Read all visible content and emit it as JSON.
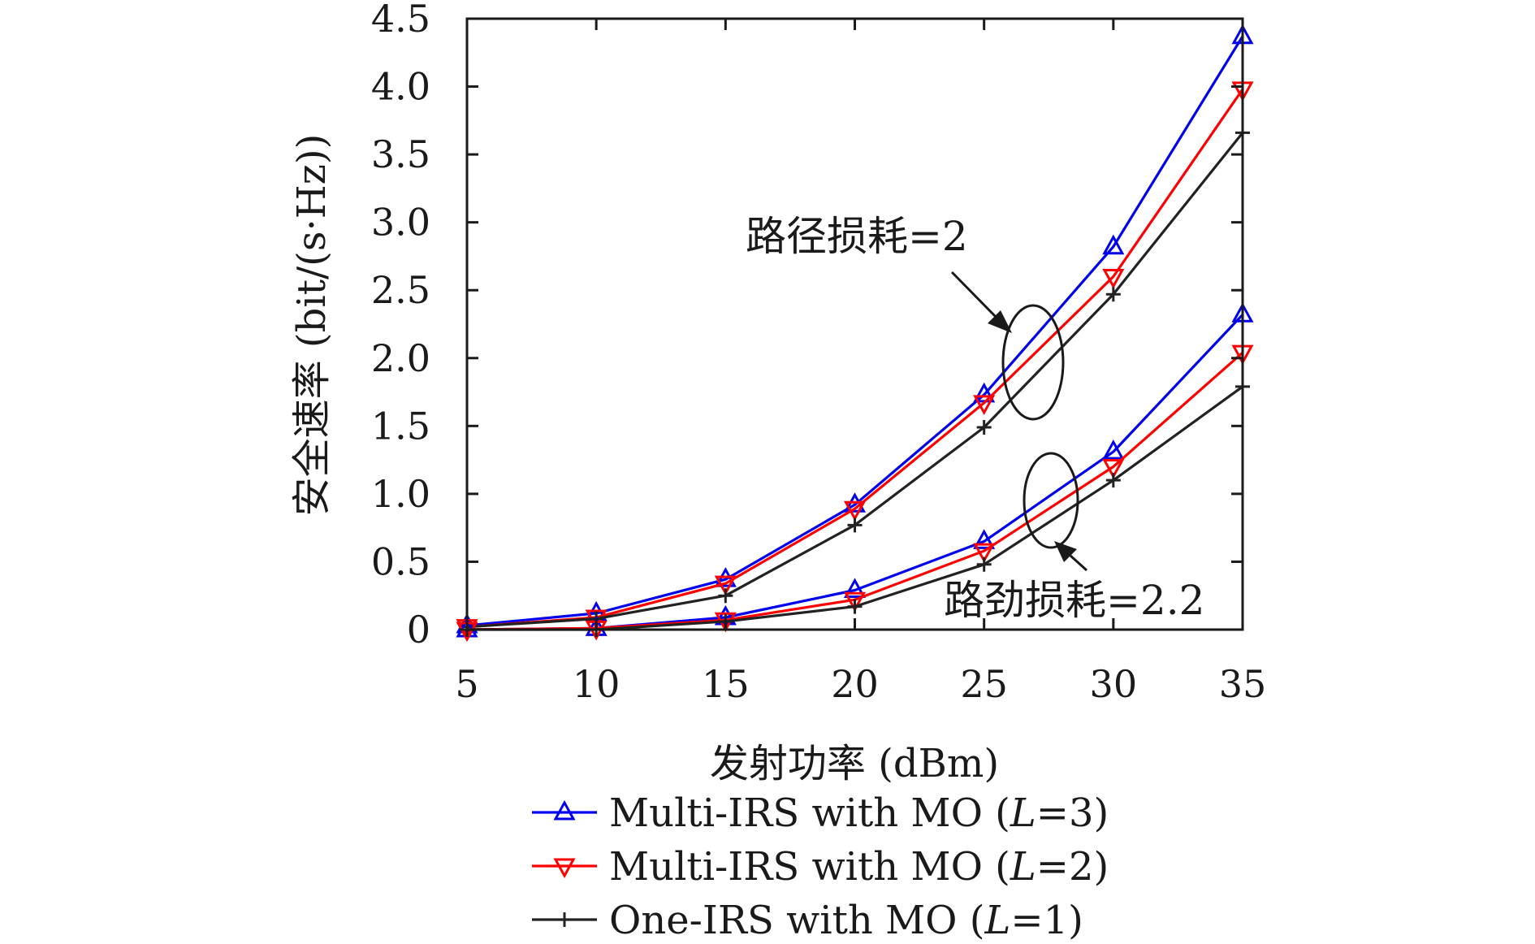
{
  "chart_data": {
    "type": "line",
    "xlabel": "发射功率 (dBm)",
    "ylabel": "安全速率 (bit/(s·Hz))",
    "x": [
      5,
      10,
      15,
      20,
      25,
      30,
      35
    ],
    "xticks": [
      "5",
      "10",
      "15",
      "20",
      "25",
      "30",
      "35"
    ],
    "yticks": [
      "0",
      "0.5",
      "1.0",
      "1.5",
      "2.0",
      "2.5",
      "3.0",
      "3.5",
      "4.0",
      "4.5"
    ],
    "xlim": [
      5,
      35
    ],
    "ylim": [
      0,
      4.5
    ],
    "grid": false,
    "legend_position": "bottom",
    "colors": {
      "blue": "#0000ee",
      "red": "#ff0000",
      "black": "#222222"
    },
    "annotations": [
      {
        "text": "路径损耗=2",
        "group": "pathloss_2"
      },
      {
        "text": "路劲损耗=2.2",
        "group": "pathloss_2_2"
      }
    ],
    "series": [
      {
        "name": "Multi-IRS with MO (L=3)",
        "legend_main": "Multi-IRS with MO (",
        "legend_var": "L",
        "legend_tail": "=3)",
        "group": "pathloss_2",
        "color": "#0000ee",
        "marker": "triangle-up",
        "values": [
          0.03,
          0.12,
          0.37,
          0.92,
          1.73,
          2.82,
          4.37
        ]
      },
      {
        "name": "Multi-IRS with MO (L=2)",
        "legend_main": "Multi-IRS with MO (",
        "legend_var": "L",
        "legend_tail": "=2)",
        "group": "pathloss_2",
        "color": "#ff0000",
        "marker": "triangle-down",
        "values": [
          0.02,
          0.09,
          0.34,
          0.89,
          1.67,
          2.6,
          3.98
        ]
      },
      {
        "name": "One-IRS with MO (L=1)",
        "legend_main": "One-IRS with MO (",
        "legend_var": "L",
        "legend_tail": "=1)",
        "group": "pathloss_2",
        "color": "#222222",
        "marker": "plus",
        "values": [
          0.02,
          0.08,
          0.25,
          0.77,
          1.49,
          2.47,
          3.66
        ]
      },
      {
        "name": "Multi-IRS with MO (L=3)",
        "group": "pathloss_2_2",
        "color": "#0000ee",
        "marker": "triangle-up",
        "values": [
          0.0,
          0.01,
          0.09,
          0.29,
          0.65,
          1.31,
          2.32
        ]
      },
      {
        "name": "Multi-IRS with MO (L=2)",
        "group": "pathloss_2_2",
        "color": "#ff0000",
        "marker": "triangle-down",
        "values": [
          0.0,
          0.01,
          0.07,
          0.22,
          0.58,
          1.2,
          2.04
        ]
      },
      {
        "name": "One-IRS with MO (L=1)",
        "group": "pathloss_2_2",
        "color": "#222222",
        "marker": "plus",
        "values": [
          0.0,
          0.0,
          0.06,
          0.17,
          0.48,
          1.1,
          1.79
        ]
      }
    ]
  }
}
